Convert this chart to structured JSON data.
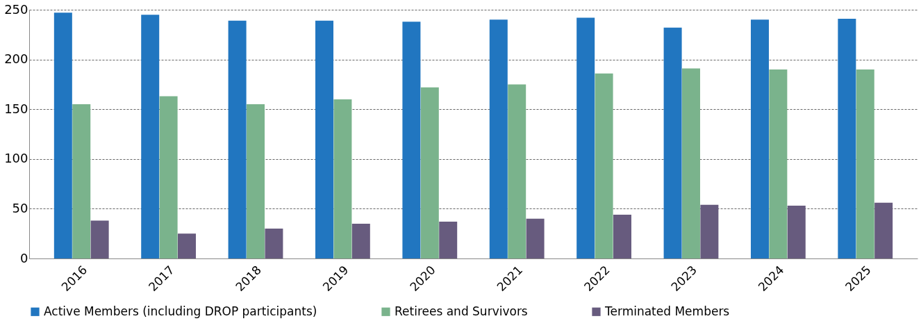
{
  "chart_data": {
    "type": "bar",
    "categories": [
      "2016",
      "2017",
      "2018",
      "2019",
      "2020",
      "2021",
      "2022",
      "2023",
      "2024",
      "2025"
    ],
    "series": [
      {
        "name": "Active Members (including DROP participants)",
        "color": "#2176c0",
        "values": [
          247,
          245,
          239,
          239,
          238,
          240,
          242,
          232,
          240,
          241
        ]
      },
      {
        "name": "Retirees and Survivors",
        "color": "#7ab38c",
        "values": [
          155,
          163,
          155,
          160,
          172,
          175,
          186,
          191,
          190,
          190
        ]
      },
      {
        "name": "Terminated Members",
        "color": "#675b7e",
        "values": [
          38,
          25,
          30,
          35,
          37,
          40,
          44,
          54,
          53,
          56
        ]
      }
    ],
    "ylim": [
      0,
      250
    ],
    "yticks": [
      0,
      50,
      100,
      150,
      200,
      250
    ],
    "grid": "y",
    "legend": "bottom"
  }
}
